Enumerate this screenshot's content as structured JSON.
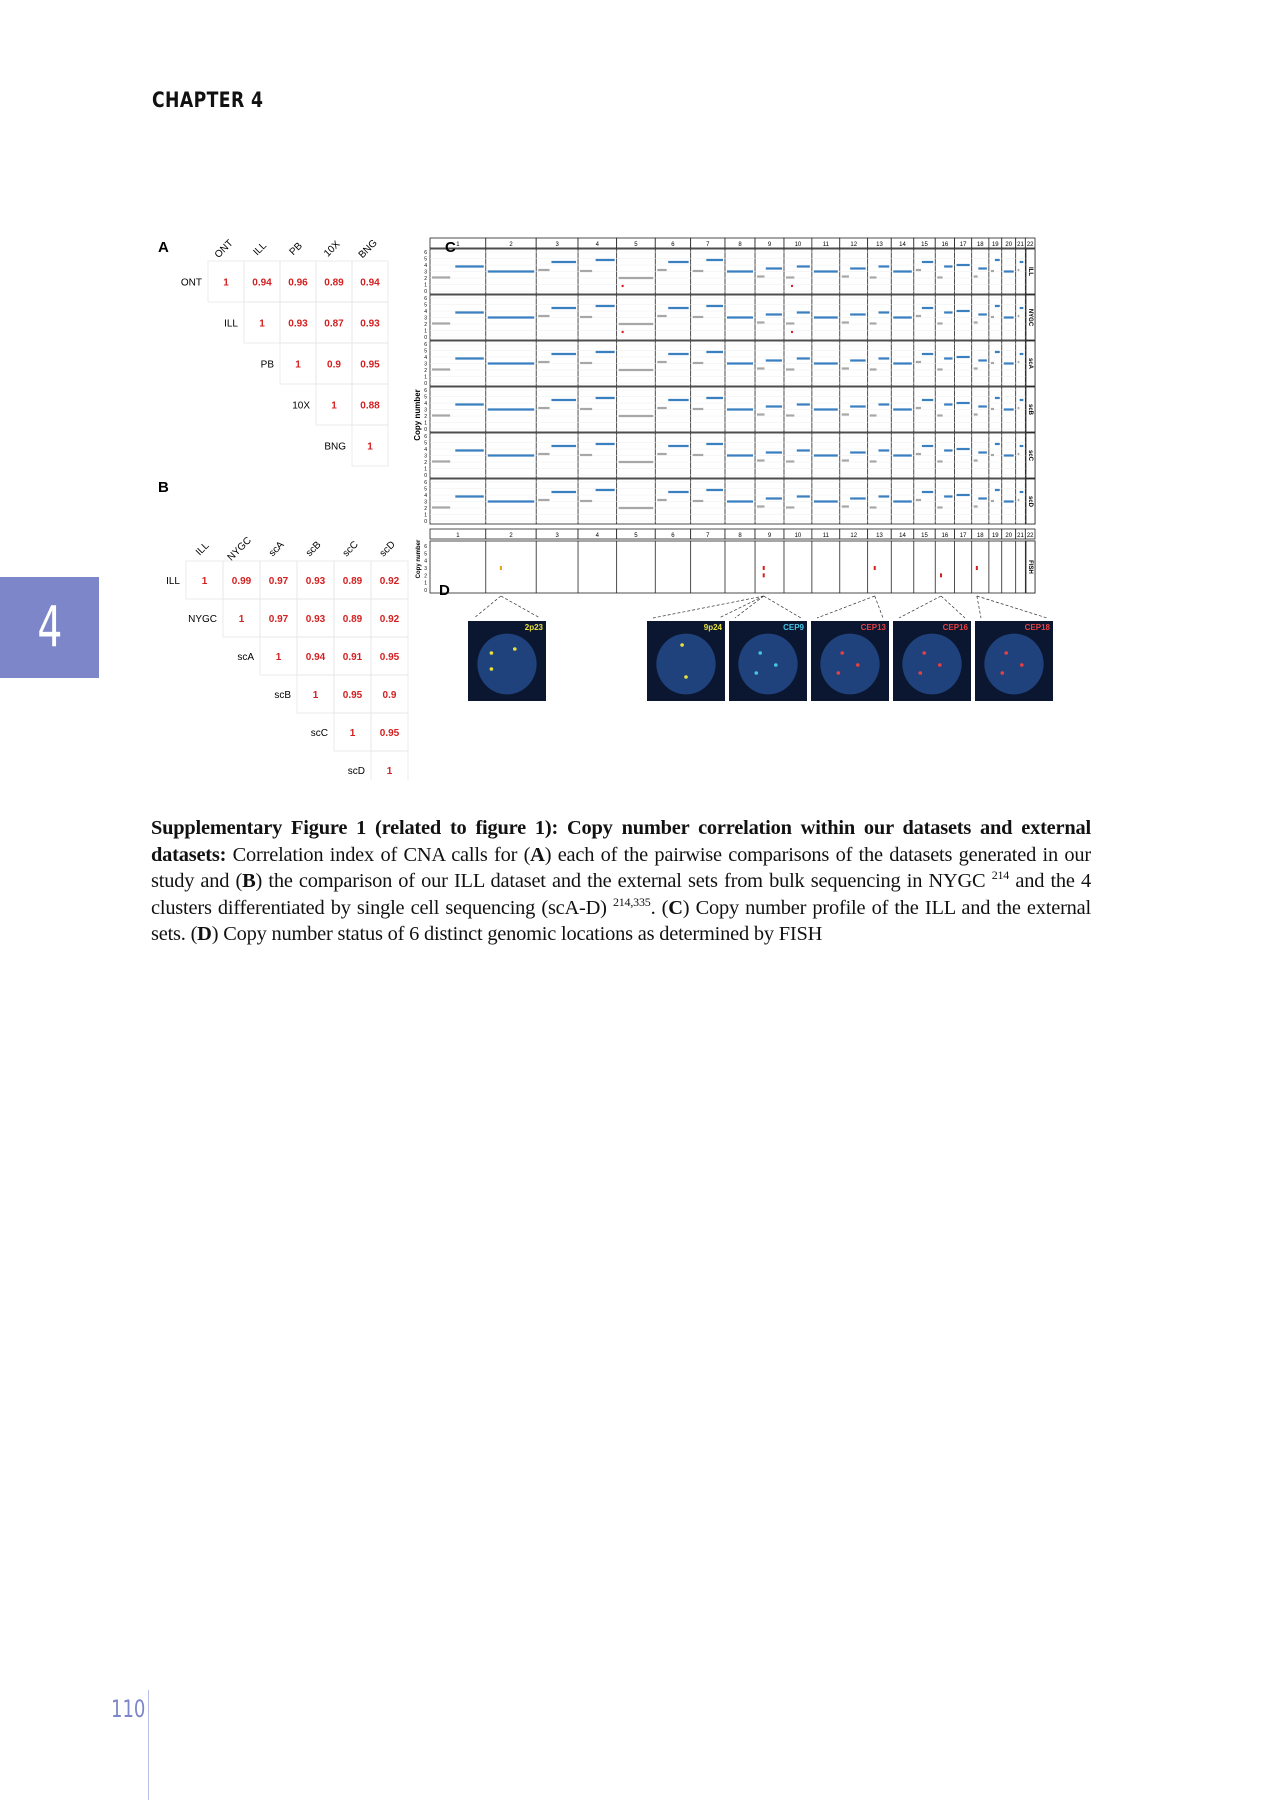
{
  "header": {
    "chapter": "CHAPTER 4"
  },
  "chapter_tab": "4",
  "page_number": "110",
  "figure": {
    "panel_labels": {
      "a": "A",
      "b": "B",
      "c": "C",
      "d": "D"
    },
    "matrix_a": {
      "labels": [
        "ONT",
        "ILL",
        "PB",
        "10X",
        "BNG"
      ],
      "rows": [
        [
          "1",
          "0.94",
          "0.96",
          "0.89",
          "0.94"
        ],
        [
          "1",
          "0.93",
          "0.87",
          "0.93"
        ],
        [
          "1",
          "0.9",
          "0.95"
        ],
        [
          "1",
          "0.88"
        ],
        [
          "1"
        ]
      ]
    },
    "matrix_b": {
      "labels": [
        "ILL",
        "NYGC",
        "scA",
        "scB",
        "scC",
        "scD"
      ],
      "rows": [
        [
          "1",
          "0.99",
          "0.97",
          "0.93",
          "0.89",
          "0.92"
        ],
        [
          "1",
          "0.97",
          "0.93",
          "0.89",
          "0.92"
        ],
        [
          "1",
          "0.94",
          "0.91",
          "0.95"
        ],
        [
          "1",
          "0.95",
          "0.9"
        ],
        [
          "1",
          "0.95"
        ],
        [
          "1"
        ]
      ]
    },
    "panel_c": {
      "ylabel": "Copy number",
      "chromosomes": [
        "1",
        "2",
        "3",
        "4",
        "5",
        "6",
        "7",
        "8",
        "9",
        "10",
        "11",
        "12",
        "13",
        "14",
        "15",
        "16",
        "17",
        "18",
        "19",
        "20",
        "21",
        "22"
      ],
      "tracks": [
        "ILL",
        "NYGC",
        "scA",
        "scB",
        "scC",
        "scD"
      ],
      "y_ticks": [
        "0",
        "1",
        "2",
        "3",
        "4",
        "5",
        "6"
      ]
    },
    "panel_d": {
      "ylabel": "Copy number",
      "track": "FISH",
      "fish_labels": [
        "2p23",
        "9p24",
        "CEP9",
        "CEP13",
        "CEP16",
        "CEP18"
      ],
      "fish_label_colors": [
        "#e8e23a",
        "#e8e23a",
        "#45c6e8",
        "#e84040",
        "#e84040",
        "#e84040"
      ]
    },
    "colors": {
      "matrix_value": "#d42020",
      "gain_segment": "#3a7fc0",
      "neutral_segment": "#a7a7a7",
      "loss_point": "#d42020"
    }
  },
  "caption": {
    "title": "Supplementary Figure 1 (related to figure 1): Copy number correlation within our datasets and external datasets:",
    "t1": " Correlation index of CNA calls for (",
    "a": "A",
    "t2": ") each of the pairwise comparisons of the datasets generated in our study and (",
    "b": "B",
    "t3": ") the comparison of our ILL dataset and the external sets from bulk sequencing in NYGC ",
    "ref1": "214",
    "t4": " and the 4 clusters differentiated by single cell sequencing (scA-D) ",
    "ref2": "214,335",
    "t5": ". (",
    "c": "C",
    "t6": ") Copy number profile of the ILL and the external sets. (",
    "d": "D",
    "t7": ") Copy number status of 6 distinct genomic locations as determined by FISH"
  }
}
